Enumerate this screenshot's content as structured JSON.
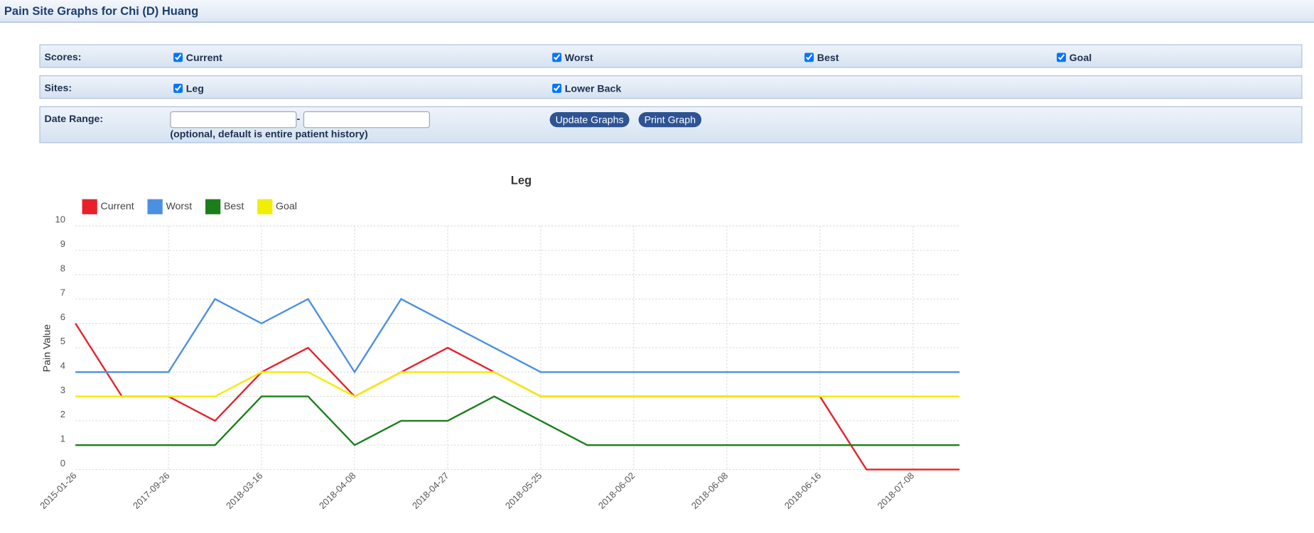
{
  "header": {
    "title": "Pain Site Graphs for Chi (D) Huang"
  },
  "form": {
    "scores": {
      "label": "Scores:",
      "options": [
        "Current",
        "Worst",
        "Best",
        "Goal"
      ]
    },
    "sites": {
      "label": "Sites:",
      "options": [
        "Leg",
        "Lower Back"
      ]
    },
    "date_range": {
      "label": "Date Range:",
      "separator": "-",
      "note": "(optional, default is entire patient history)",
      "buttons": [
        "Update Graphs",
        "Print Graph"
      ]
    }
  },
  "chart_data": {
    "type": "line",
    "title": "Leg",
    "y_label": "Pain Value",
    "categories": [
      "2015-01-26",
      null,
      "2017-09-26",
      null,
      "2018-03-16",
      null,
      "2018-04-08",
      null,
      "2018-04-27",
      null,
      "2018-05-25",
      null,
      "2018-06-02",
      null,
      "2018-06-08",
      null,
      "2018-06-16",
      null,
      "2018-07-08",
      null
    ],
    "series": [
      {
        "name": "Current",
        "color": "#e8202a",
        "values": [
          6,
          3,
          3,
          2,
          4,
          5,
          3,
          4,
          5,
          4,
          3,
          3,
          3,
          3,
          3,
          3,
          3,
          0,
          0,
          0
        ]
      },
      {
        "name": "Worst",
        "color": "#4a90e2",
        "values": [
          4,
          4,
          4,
          7,
          6,
          7,
          4,
          7,
          6,
          5,
          4,
          4,
          4,
          4,
          4,
          4,
          4,
          4,
          4,
          4
        ]
      },
      {
        "name": "Best",
        "color": "#1a7f1a",
        "values": [
          1,
          1,
          1,
          1,
          3,
          3,
          1,
          2,
          2,
          3,
          2,
          1,
          1,
          1,
          1,
          1,
          1,
          1,
          1,
          1
        ]
      },
      {
        "name": "Goal",
        "color": "#f2ee00",
        "values": [
          3,
          3,
          3,
          3,
          4,
          4,
          3,
          4,
          4,
          4,
          3,
          3,
          3,
          3,
          3,
          3,
          3,
          3,
          3,
          3
        ]
      }
    ],
    "ylim": [
      0,
      10
    ],
    "yticks": [
      0,
      1,
      2,
      3,
      4,
      5,
      6,
      7,
      8,
      9,
      10
    ],
    "grid": true,
    "legend": "top-left"
  }
}
